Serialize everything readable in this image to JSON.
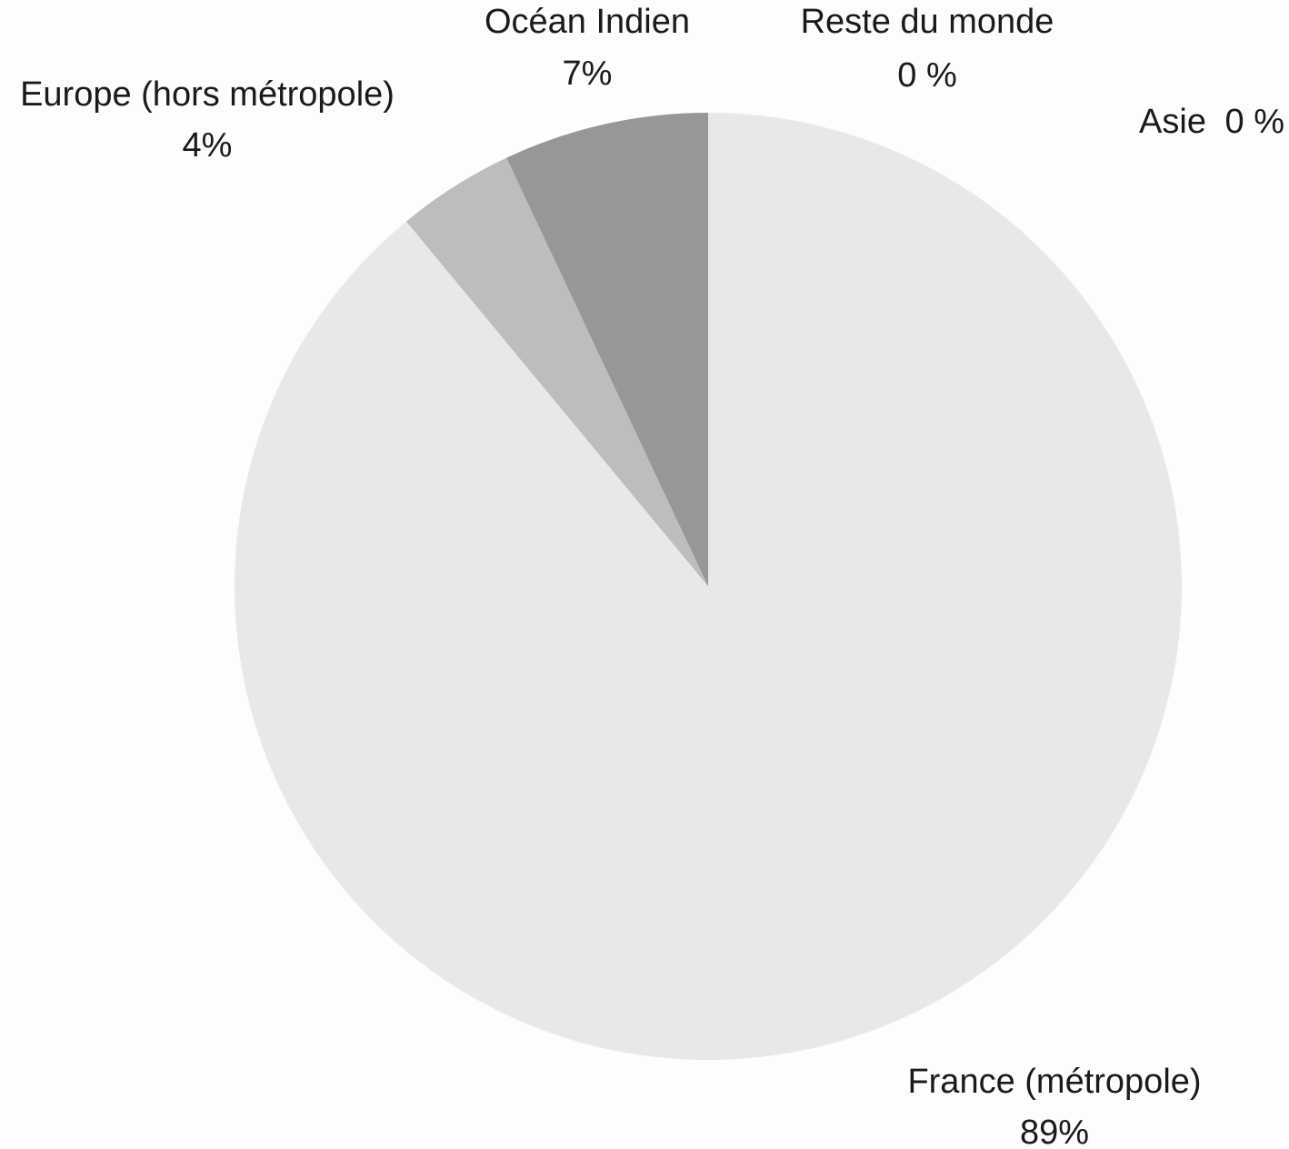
{
  "chart_data": {
    "type": "pie",
    "title": "",
    "start_angle_deg": 0,
    "direction": "clockwise",
    "slices": [
      {
        "category": "France (métropole)",
        "value": 89,
        "label_value": "89%",
        "color": "#e8e8e8"
      },
      {
        "category": "Europe (hors métropole)",
        "value": 4,
        "label_value": "4%",
        "color": "#bdbdbd"
      },
      {
        "category": "Océan Indien",
        "value": 7,
        "label_value": "7%",
        "color": "#979797"
      },
      {
        "category": "Reste du monde",
        "value": 0,
        "label_value": "0 %",
        "color": "#7a7a7a"
      },
      {
        "category": "Asie",
        "value": 0,
        "label_value": "0 %",
        "color": "#5e5e5e"
      }
    ]
  }
}
